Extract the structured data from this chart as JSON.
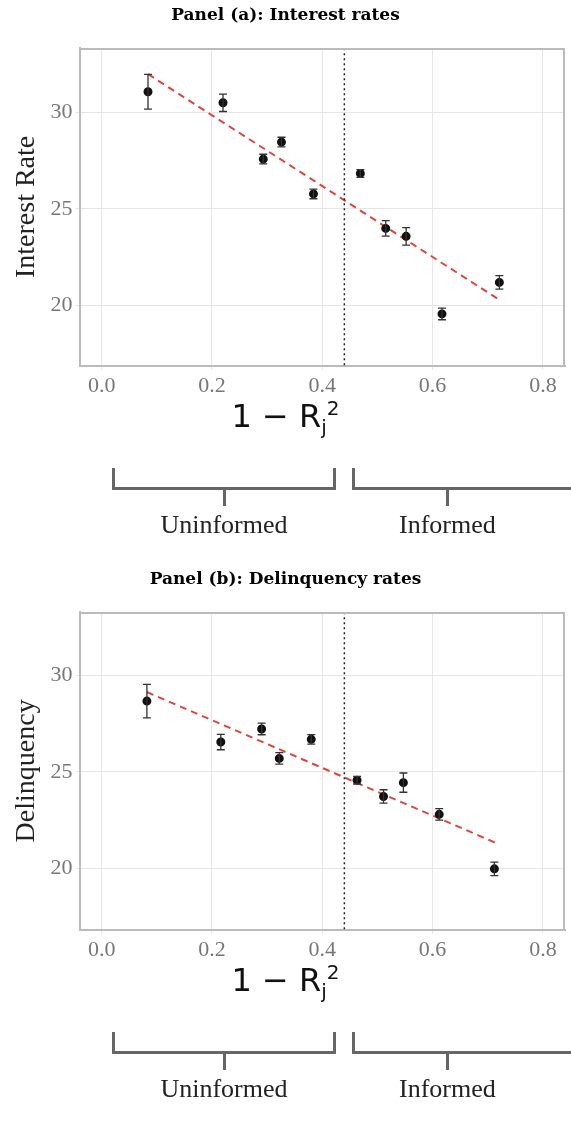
{
  "chart_data": [
    {
      "type": "scatter",
      "title": "Panel (a): Interest rates",
      "xlabel": "1 − R$_{j}$$^{2}$",
      "ylabel": "Interest Rate",
      "xlim": [
        -0.04,
        0.84
      ],
      "xticks": [
        {
          "value": 0,
          "label": "0.0"
        },
        0.2,
        0.4,
        0.6,
        0.8
      ],
      "ylim": [
        16.9,
        33.3
      ],
      "yticks": [
        20,
        25,
        30
      ],
      "grid": true,
      "series": [
        {
          "type": "scatter",
          "color": "#111111",
          "marker": "circle",
          "x": [
            0.084,
            0.22,
            0.293,
            0.326,
            0.384,
            0.469,
            0.515,
            0.552,
            0.617,
            0.721
          ],
          "values": [
            31.05,
            30.48,
            27.57,
            28.45,
            25.77,
            26.83,
            23.99,
            23.58,
            19.57,
            21.2
          ],
          "errors": [
            0.9,
            0.45,
            0.25,
            0.25,
            0.25,
            0.2,
            0.4,
            0.45,
            0.3,
            0.35
          ]
        },
        {
          "type": "line",
          "color": "#e0443c",
          "marker": "none",
          "line_style": "dashed",
          "x": [
            0.084,
            0.717
          ],
          "values": [
            31.96,
            20.37
          ]
        }
      ],
      "ref_lines": [
        {
          "axis": "x",
          "value": 0.44,
          "color": "#222222",
          "line_style": "dotted"
        }
      ],
      "annotations": [
        "Uninformed",
        "Informed"
      ]
    },
    {
      "type": "scatter",
      "title": "Panel (b): Delinquency rates",
      "xlabel": "1 − R$_{j}$$^{2}$",
      "ylabel": "Delinquency",
      "xlim": [
        -0.04,
        0.84
      ],
      "xticks": [
        {
          "value": 0,
          "label": "0.0"
        },
        0.2,
        0.4,
        0.6,
        0.8
      ],
      "ylim": [
        16.8,
        33.3
      ],
      "yticks": [
        20,
        25,
        30
      ],
      "grid": true,
      "series": [
        {
          "type": "scatter",
          "color": "#111111",
          "marker": "circle",
          "x": [
            0.082,
            0.216,
            0.29,
            0.322,
            0.38,
            0.463,
            0.511,
            0.547,
            0.612,
            0.712
          ],
          "values": [
            28.68,
            26.55,
            27.23,
            25.7,
            26.69,
            24.57,
            23.72,
            24.44,
            22.79,
            19.96
          ],
          "errors": [
            0.87,
            0.4,
            0.3,
            0.3,
            0.25,
            0.2,
            0.35,
            0.5,
            0.3,
            0.35
          ]
        },
        {
          "type": "line",
          "color": "#e0443c",
          "marker": "none",
          "line_style": "dashed",
          "x": [
            0.082,
            0.715
          ],
          "values": [
            29.15,
            21.3
          ]
        }
      ],
      "ref_lines": [
        {
          "axis": "x",
          "value": 0.44,
          "color": "#222222",
          "line_style": "dotted"
        }
      ],
      "annotations": [
        "Uninformed",
        "Informed"
      ]
    }
  ]
}
